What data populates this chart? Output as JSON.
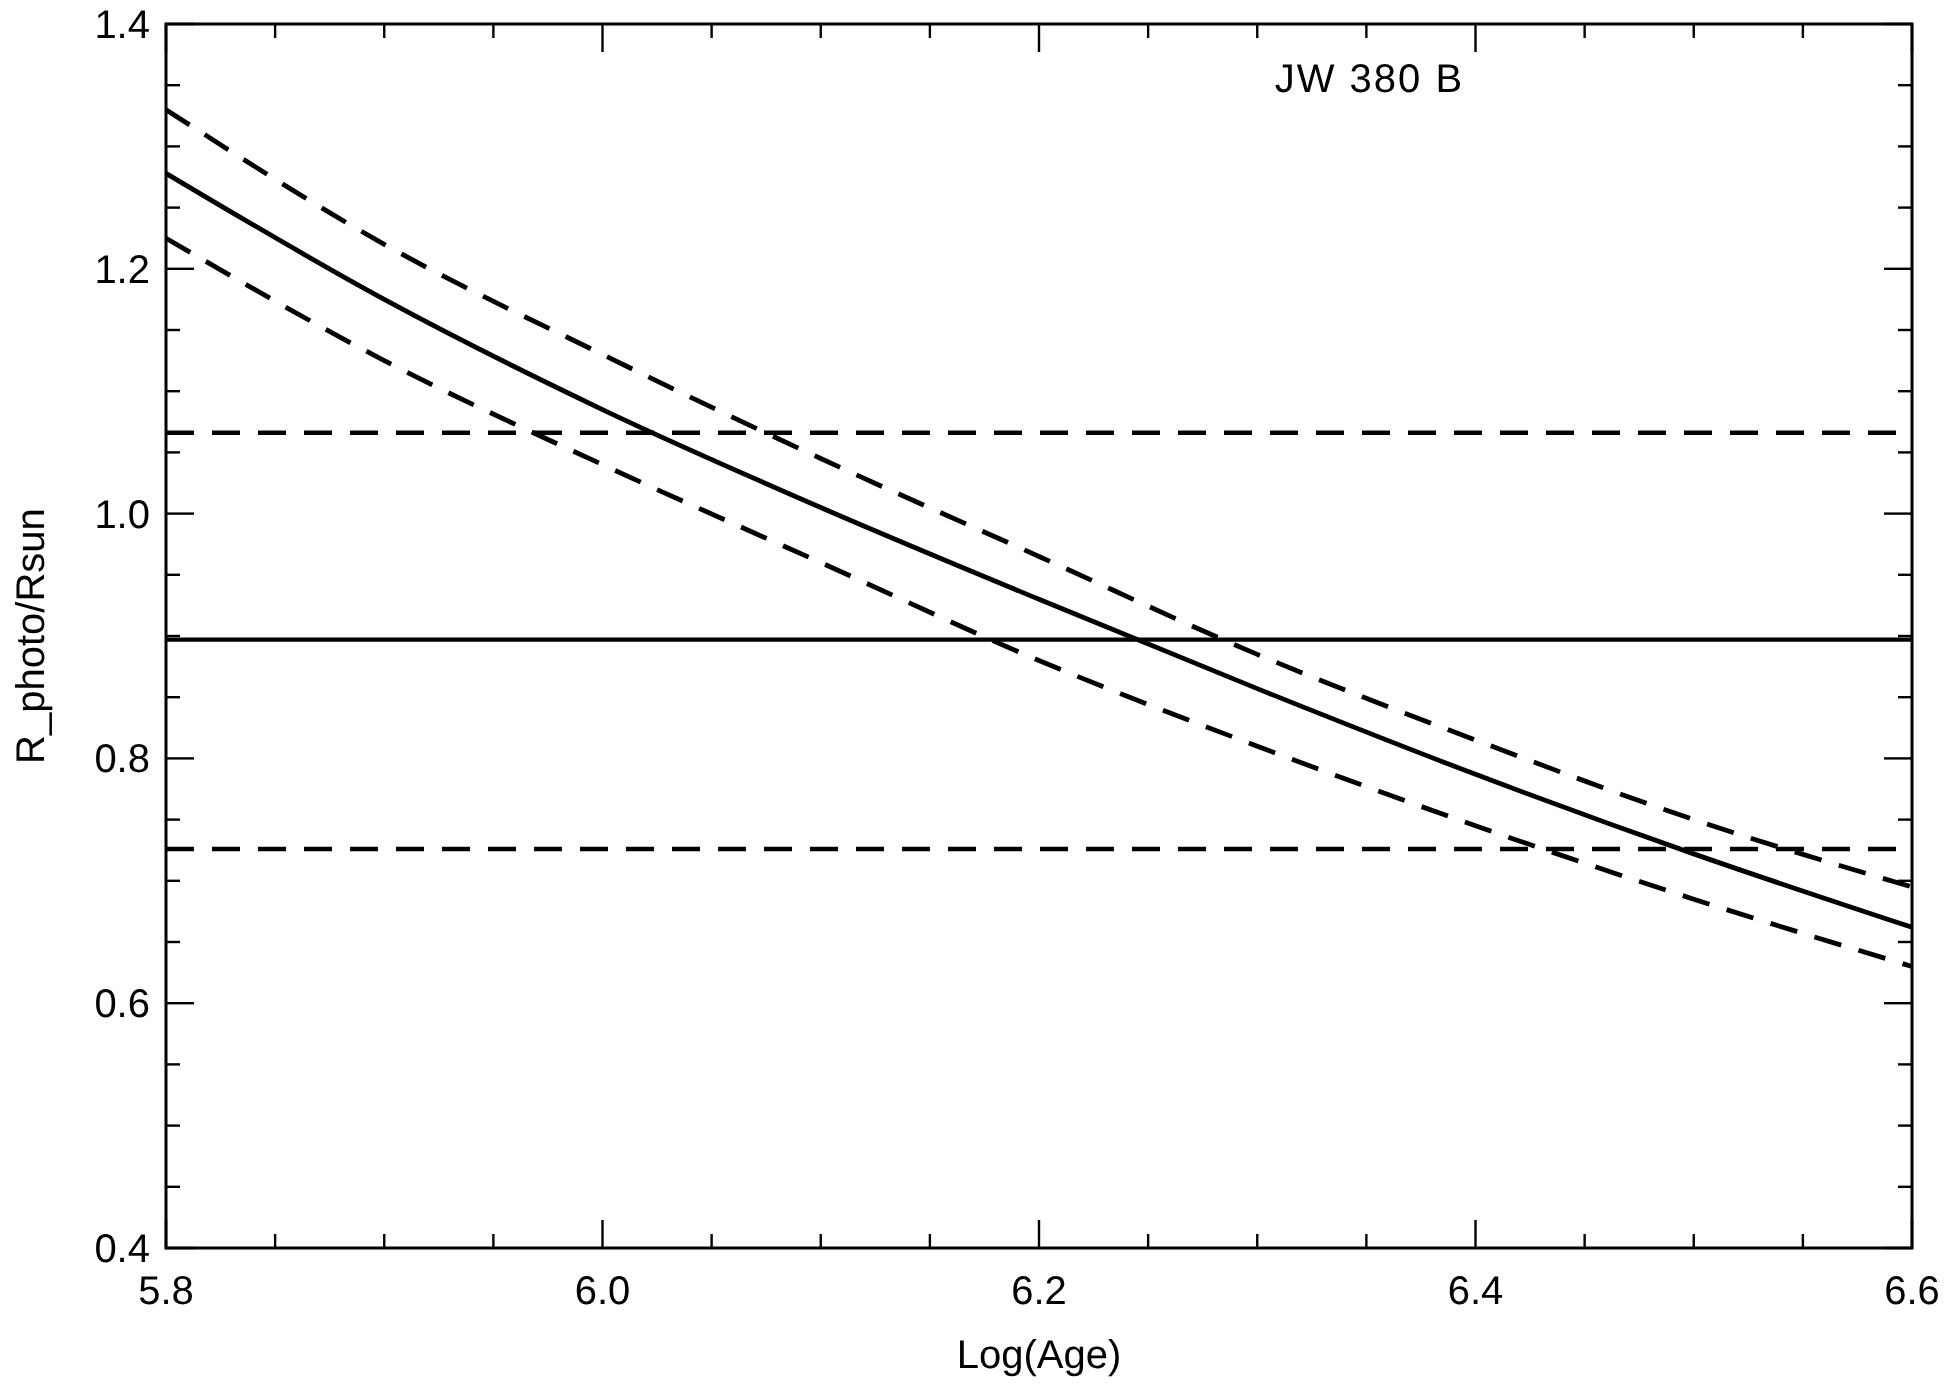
{
  "chart_data": {
    "type": "line",
    "xlabel": "Log(Age)",
    "ylabel": "R_photo/Rsun",
    "annotations": [
      "JW 380 B"
    ],
    "xlim": [
      5.8,
      6.6
    ],
    "ylim": [
      0.4,
      1.4
    ],
    "xticks": [
      {
        "value": 5.8,
        "label": "5.8"
      },
      {
        "value": 5.85,
        "label": null
      },
      {
        "value": 5.9,
        "label": null
      },
      {
        "value": 5.95,
        "label": null
      },
      {
        "value": 6.0,
        "label": "6.0"
      },
      {
        "value": 6.05,
        "label": null
      },
      {
        "value": 6.1,
        "label": null
      },
      {
        "value": 6.15,
        "label": null
      },
      {
        "value": 6.2,
        "label": "6.2"
      },
      {
        "value": 6.25,
        "label": null
      },
      {
        "value": 6.3,
        "label": null
      },
      {
        "value": 6.35,
        "label": null
      },
      {
        "value": 6.4,
        "label": "6.4"
      },
      {
        "value": 6.45,
        "label": null
      },
      {
        "value": 6.5,
        "label": null
      },
      {
        "value": 6.55,
        "label": null
      },
      {
        "value": 6.6,
        "label": "6.6"
      }
    ],
    "yticks": [
      {
        "value": 0.4,
        "label": "0.4"
      },
      {
        "value": 0.45,
        "label": null
      },
      {
        "value": 0.5,
        "label": null
      },
      {
        "value": 0.55,
        "label": null
      },
      {
        "value": 0.6,
        "label": "0.6"
      },
      {
        "value": 0.65,
        "label": null
      },
      {
        "value": 0.7,
        "label": null
      },
      {
        "value": 0.75,
        "label": null
      },
      {
        "value": 0.8,
        "label": "0.8"
      },
      {
        "value": 0.85,
        "label": null
      },
      {
        "value": 0.9,
        "label": null
      },
      {
        "value": 0.95,
        "label": null
      },
      {
        "value": 1.0,
        "label": "1.0"
      },
      {
        "value": 1.05,
        "label": null
      },
      {
        "value": 1.1,
        "label": null
      },
      {
        "value": 1.15,
        "label": null
      },
      {
        "value": 1.2,
        "label": "1.2"
      },
      {
        "value": 1.25,
        "label": null
      },
      {
        "value": 1.3,
        "label": null
      },
      {
        "value": 1.35,
        "label": null
      },
      {
        "value": 1.4,
        "label": "1.4"
      }
    ],
    "x": [
      5.8,
      5.9,
      6.0,
      6.1,
      6.2,
      6.3,
      6.4,
      6.5,
      6.6
    ],
    "series": [
      {
        "color": "#000000",
        "line_style": "solid",
        "values": [
          1.278,
          1.175,
          1.085,
          1.005,
          0.93,
          0.857,
          0.787,
          0.722,
          0.662
        ]
      },
      {
        "color": "#000000",
        "line_style": "dashed",
        "values": [
          1.33,
          1.22,
          1.13,
          1.045,
          0.965,
          0.885,
          0.815,
          0.75,
          0.695
        ]
      },
      {
        "color": "#000000",
        "line_style": "dashed",
        "values": [
          1.225,
          1.125,
          1.04,
          0.96,
          0.88,
          0.81,
          0.745,
          0.685,
          0.63
        ]
      }
    ],
    "ref_lines": [
      {
        "axis": "y",
        "value": 0.897,
        "color": "#000000",
        "line_style": "solid"
      },
      {
        "axis": "y",
        "value": 1.066,
        "color": "#000000",
        "line_style": "dashed"
      },
      {
        "axis": "y",
        "value": 0.726,
        "color": "#000000",
        "line_style": "dashed"
      }
    ],
    "grid": false,
    "marker": "none"
  }
}
